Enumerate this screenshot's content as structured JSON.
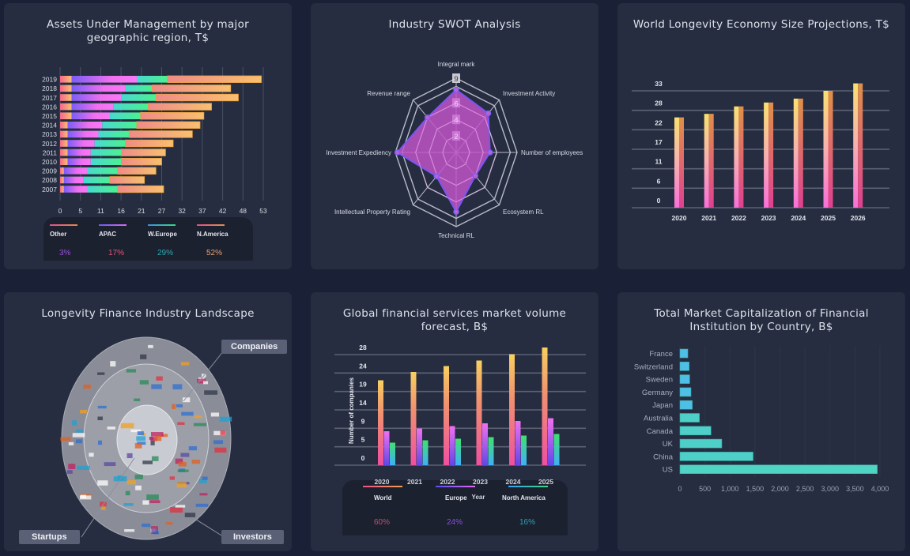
{
  "colors": {
    "page_bg": "#1a2035",
    "card_bg": "#262d40"
  },
  "cards": {
    "aum": {
      "title": "Assets Under Management by major geographic region, T$"
    },
    "swot": {
      "title": "Industry SWOT Analysis"
    },
    "longevity": {
      "title": "World Longevity Economy Size Projections, T$"
    },
    "landscape": {
      "title": "Longevity Finance Industry Landscape",
      "labels": {
        "companies": "Companies",
        "startups": "Startups",
        "investors": "Investors"
      }
    },
    "financial": {
      "title": "Global financial services market volume forecast, B$"
    },
    "marketcap": {
      "title": "Total Market Capitalization of Financial Institution by Country, B$"
    }
  },
  "chart_data": [
    {
      "id": "aum",
      "type": "bar",
      "orientation": "horizontal",
      "stacked": true,
      "title": "Assets Under Management by major geographic region, T$",
      "categories": [
        "2019",
        "2018",
        "2017",
        "2016",
        "2015",
        "2014",
        "2013",
        "2012",
        "2011",
        "2010",
        "2009",
        "2008",
        "2007"
      ],
      "series": [
        {
          "name": "Other",
          "values": [
            3,
            3,
            3,
            3,
            3,
            2,
            2,
            2,
            2,
            2,
            1,
            1,
            1
          ]
        },
        {
          "name": "APAC",
          "values": [
            17,
            14,
            13,
            11,
            10,
            9,
            8,
            7,
            6,
            6,
            6,
            5,
            6
          ]
        },
        {
          "name": "W.Europe",
          "values": [
            8,
            7,
            9,
            9,
            8,
            9,
            8,
            8,
            8,
            8,
            8,
            7,
            8
          ]
        },
        {
          "name": "N.America",
          "values": [
            24.5,
            20.5,
            21.5,
            16.5,
            16.5,
            16.5,
            16.5,
            12.5,
            11.5,
            10.5,
            10,
            9,
            12
          ]
        }
      ],
      "xticks": [
        "0",
        "5",
        "11",
        "16",
        "21",
        "27",
        "32",
        "37",
        "42",
        "48",
        "53"
      ],
      "xlim": [
        0,
        53
      ],
      "grid": true,
      "legend": {
        "placement": "bottom",
        "items": [
          {
            "name": "Other",
            "pct": "3%",
            "line_from": "#e0508a",
            "line_to": "#e08a50",
            "pct_color": "#9a4fd8"
          },
          {
            "name": "APAC",
            "pct": "17%",
            "line_from": "#6a5cf0",
            "line_to": "#d56af0",
            "pct_color": "#e0557a"
          },
          {
            "name": "W.Europe",
            "pct": "29%",
            "line_from": "#3a8fe0",
            "line_to": "#3ad88a",
            "pct_color": "#2fa8b0"
          },
          {
            "name": "N.America",
            "pct": "52%",
            "line_from": "#e0508a",
            "line_to": "#e09050",
            "pct_color": "#e6a070"
          }
        ]
      }
    },
    {
      "id": "swot",
      "type": "radar",
      "title": "Industry SWOT Analysis",
      "axes": [
        "Integral mark",
        "Investment Activity",
        "Number of employees",
        "Ecosystem RL",
        "Technical RL",
        "Intellectual Property Rating",
        "Investment Expediency",
        "Revenue range"
      ],
      "values": [
        7.6,
        6.7,
        5.0,
        4.0,
        7.2,
        4.1,
        8.7,
        6.0
      ],
      "range": [
        0,
        9
      ],
      "ticks": [
        "2",
        "4",
        "6",
        "9"
      ],
      "rings": [
        2,
        4,
        6,
        8,
        9
      ],
      "fill_color": "#c055c8",
      "stroke_color": "#7a55f0"
    },
    {
      "id": "longevity",
      "type": "bar",
      "title": "World Longevity Economy Size Projections, T$",
      "categories": [
        "2020",
        "2021",
        "2022",
        "2023",
        "2024",
        "2025",
        "2026"
      ],
      "values": [
        25.5,
        26.5,
        28.6,
        29.7,
        30.8,
        33.0,
        35.1
      ],
      "yticks": [
        "0",
        "6",
        "11",
        "17",
        "22",
        "28",
        "33"
      ],
      "ylim": [
        0,
        33
      ],
      "grid": true
    },
    {
      "id": "financial",
      "type": "bar",
      "title": "Global financial services market volume forecast, B$",
      "xlabel": "Year",
      "ylabel": "Number of companies",
      "categories": [
        "2020",
        "2021",
        "2022",
        "2023",
        "2024",
        "2025"
      ],
      "series": [
        {
          "name": "World",
          "values": [
            21.5,
            23.6,
            25.1,
            26.5,
            28.1,
            29.8
          ]
        },
        {
          "name": "Europe",
          "values": [
            8.6,
            9.3,
            9.9,
            10.6,
            11.2,
            11.9
          ]
        },
        {
          "name": "North America",
          "values": [
            5.7,
            6.3,
            6.7,
            7.1,
            7.5,
            7.9
          ]
        }
      ],
      "yticks": [
        "0",
        "5",
        "9",
        "14",
        "19",
        "24",
        "28"
      ],
      "ylim": [
        0,
        28
      ],
      "grid": true,
      "legend": {
        "placement": "bottom",
        "items": [
          {
            "name": "World",
            "pct": "60%",
            "line_from": "#f0508a",
            "line_to": "#f0a050",
            "pct_color": "#c0506a"
          },
          {
            "name": "Europe",
            "pct": "24%",
            "line_from": "#5a4cf0",
            "line_to": "#e06af0",
            "pct_color": "#8a4fd8"
          },
          {
            "name": "North America",
            "pct": "16%",
            "line_from": "#3aa0f0",
            "line_to": "#3ad880",
            "pct_color": "#2fa0b0"
          }
        ]
      }
    },
    {
      "id": "marketcap",
      "type": "bar",
      "orientation": "horizontal",
      "title": "Total Market Capitalization of Financial Institution by Country, B$",
      "categories": [
        "France",
        "Switzerland",
        "Sweden",
        "Germany",
        "Japan",
        "Australia",
        "Canada",
        "UK",
        "China",
        "US"
      ],
      "values": [
        158,
        184,
        195,
        221,
        247,
        389,
        621,
        837,
        1463,
        3947
      ],
      "xticks": [
        "0",
        "500",
        "1,000",
        "1,500",
        "2,000",
        "2,500",
        "3,000",
        "3,500",
        "4,000"
      ],
      "xlim": [
        0,
        4000
      ],
      "grid": true
    }
  ]
}
